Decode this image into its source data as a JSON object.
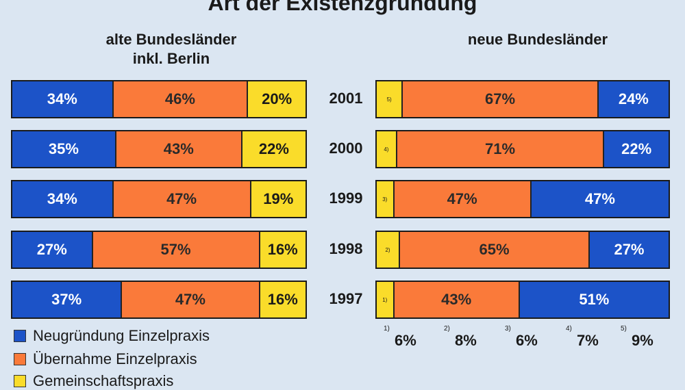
{
  "chart_data": {
    "type": "bar",
    "title": "Art der Existenzgründung",
    "categories": [
      "2001",
      "2000",
      "1999",
      "1998",
      "1997"
    ],
    "legend": [
      {
        "label": "Neugründung Einzelpraxis",
        "color": "#1c53c8"
      },
      {
        "label": "Übernahme Einzelpraxis",
        "color": "#fa7a3a"
      },
      {
        "label": "Gemeinschaftspraxis",
        "color": "#fadc2a"
      }
    ],
    "panels": [
      {
        "title_lines": [
          "alte Bundesländer",
          "inkl. Berlin"
        ],
        "series": [
          {
            "name": "Neugründung Einzelpraxis",
            "values": [
              34,
              35,
              34,
              27,
              37
            ]
          },
          {
            "name": "Übernahme Einzelpraxis",
            "values": [
              46,
              43,
              47,
              57,
              47
            ]
          },
          {
            "name": "Gemeinschaftspraxis",
            "values": [
              20,
              22,
              19,
              16,
              16
            ]
          }
        ]
      },
      {
        "title_lines": [
          "neue Bundesländer"
        ],
        "series": [
          {
            "name": "Gemeinschaftspraxis",
            "values": [
              9,
              7,
              6,
              8,
              6
            ],
            "labels": [
              "5)",
              "4)",
              "3)",
              "2)",
              "1)"
            ]
          },
          {
            "name": "Übernahme Einzelpraxis",
            "values": [
              67,
              71,
              47,
              65,
              43
            ]
          },
          {
            "name": "Neugründung Einzelpraxis",
            "values": [
              24,
              22,
              47,
              27,
              51
            ]
          }
        ]
      }
    ],
    "footnotes": [
      {
        "mark": "1)",
        "value": "6%"
      },
      {
        "mark": "2)",
        "value": "8%"
      },
      {
        "mark": "3)",
        "value": "6%"
      },
      {
        "mark": "4)",
        "value": "7%"
      },
      {
        "mark": "5)",
        "value": "9%"
      }
    ]
  }
}
